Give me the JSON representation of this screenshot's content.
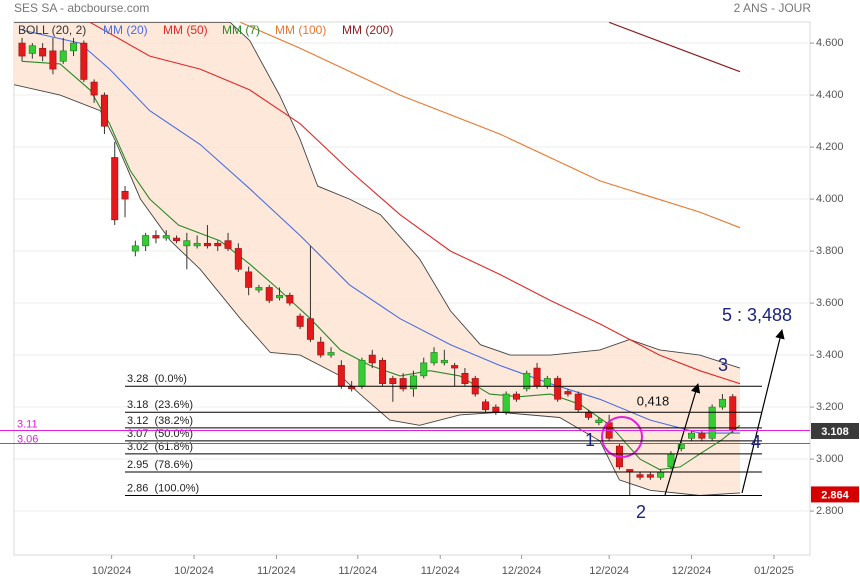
{
  "chart_data": {
    "type": "candlestick",
    "title": "SES SA - abcbourse.com",
    "period": "2 ANS - JOUR",
    "xlim": [
      -0.78,
      76.5
    ],
    "ylim": [
      2.631,
      4.681
    ],
    "xticks": [
      {
        "value": 8.7,
        "label": "10/2024"
      },
      {
        "value": 16.7,
        "label": "10/2024"
      },
      {
        "value": 24.7,
        "label": "11/2024"
      },
      {
        "value": 32.6,
        "label": "11/2024"
      },
      {
        "value": 40.6,
        "label": "11/2024"
      },
      {
        "value": 48.5,
        "label": "12/2024"
      },
      {
        "value": 57,
        "label": "12/2024"
      },
      {
        "value": 65,
        "label": "12/2024"
      },
      {
        "value": 73,
        "label": "01/2025"
      }
    ],
    "yticks": [
      {
        "value": 2.8,
        "label": "2.800"
      },
      {
        "value": 3.0,
        "label": "3.000"
      },
      {
        "value": 3.2,
        "label": "3.200"
      },
      {
        "value": 3.4,
        "label": "3.400"
      },
      {
        "value": 3.6,
        "label": "3.600"
      },
      {
        "value": 3.8,
        "label": "3.800"
      },
      {
        "value": 4.0,
        "label": "4.000"
      },
      {
        "value": 4.2,
        "label": "4.200"
      },
      {
        "value": 4.4,
        "label": "4.400"
      },
      {
        "value": 4.6,
        "label": "4.600"
      }
    ],
    "grid": true,
    "up_color": "#33cc33",
    "down_color": "#e3191c",
    "open": [
      4.6,
      4.56,
      4.58,
      4.57,
      4.53,
      4.57,
      4.6,
      4.45,
      4.4,
      4.16,
      4.03,
      3.8,
      3.82,
      3.86,
      3.85,
      3.85,
      3.82,
      3.82,
      3.83,
      3.83,
      3.84,
      3.81,
      3.72,
      3.65,
      3.66,
      3.62,
      3.63,
      3.55,
      3.54,
      3.45,
      3.4,
      3.36,
      3.28,
      3.28,
      3.4,
      3.38,
      3.31,
      3.31,
      3.27,
      3.32,
      3.37,
      3.37,
      3.36,
      3.33,
      3.31,
      3.22,
      3.2,
      3.18,
      3.25,
      3.27,
      3.35,
      3.28,
      3.31,
      3.26,
      3.25,
      3.18,
      3.14,
      3.14,
      3.05,
      2.96,
      2.94,
      2.94,
      2.93,
      2.97,
      3.04,
      3.08,
      3.1,
      3.08,
      3.2,
      3.24
    ],
    "high": [
      4.62,
      4.6,
      4.6,
      4.62,
      4.62,
      4.62,
      4.61,
      4.46,
      4.41,
      4.22,
      4.05,
      3.84,
      3.87,
      3.88,
      3.88,
      3.86,
      3.87,
      3.86,
      3.9,
      3.84,
      3.87,
      3.83,
      3.74,
      3.67,
      3.67,
      3.66,
      3.64,
      3.56,
      3.82,
      3.47,
      3.43,
      3.38,
      3.3,
      3.39,
      3.42,
      3.39,
      3.32,
      3.33,
      3.34,
      3.39,
      3.43,
      3.42,
      3.37,
      3.35,
      3.32,
      3.23,
      3.21,
      3.26,
      3.26,
      3.34,
      3.37,
      3.32,
      3.32,
      3.27,
      3.26,
      3.19,
      3.16,
      3.17,
      3.06,
      2.96,
      2.95,
      2.95,
      2.96,
      3.03,
      3.07,
      3.11,
      3.11,
      3.21,
      3.25,
      3.25
    ],
    "low": [
      4.53,
      4.54,
      4.53,
      4.48,
      4.52,
      4.55,
      4.45,
      4.37,
      4.25,
      3.9,
      3.93,
      3.78,
      3.8,
      3.83,
      3.84,
      3.83,
      3.73,
      3.81,
      3.81,
      3.8,
      3.8,
      3.72,
      3.63,
      3.64,
      3.6,
      3.61,
      3.59,
      3.5,
      3.45,
      3.39,
      3.39,
      3.27,
      3.26,
      3.27,
      3.35,
      3.28,
      3.22,
      3.26,
      3.24,
      3.31,
      3.36,
      3.36,
      3.28,
      3.28,
      3.24,
      3.18,
      3.17,
      3.17,
      3.22,
      3.26,
      3.27,
      3.27,
      3.22,
      3.24,
      3.18,
      3.15,
      3.13,
      3.07,
      2.96,
      2.86,
      2.92,
      2.92,
      2.92,
      2.96,
      3.03,
      3.07,
      3.07,
      3.07,
      3.19,
      3.1
    ],
    "close": [
      4.55,
      4.59,
      4.55,
      4.5,
      4.57,
      4.6,
      4.46,
      4.4,
      4.28,
      3.92,
      4.0,
      3.82,
      3.86,
      3.85,
      3.86,
      3.84,
      3.84,
      3.83,
      3.82,
      3.82,
      3.81,
      3.73,
      3.66,
      3.66,
      3.61,
      3.63,
      3.6,
      3.51,
      3.46,
      3.4,
      3.41,
      3.28,
      3.27,
      3.38,
      3.37,
      3.29,
      3.29,
      3.27,
      3.32,
      3.37,
      3.41,
      3.38,
      3.35,
      3.29,
      3.25,
      3.19,
      3.18,
      3.25,
      3.23,
      3.33,
      3.28,
      3.31,
      3.23,
      3.25,
      3.19,
      3.16,
      3.15,
      3.08,
      2.97,
      2.95,
      2.93,
      2.93,
      2.95,
      3.02,
      3.06,
      3.1,
      3.08,
      3.2,
      3.23,
      3.11
    ],
    "bollinger": {
      "name": "BOLL (20, 2)",
      "color": "#444444",
      "fill": "#fde4d4",
      "upper": {
        "x": [
          -0.78,
          20.2,
          22.1,
          25,
          27,
          28.7,
          31.8,
          34.8,
          38.6,
          41.6,
          44.5,
          47.4,
          51.3,
          56.1,
          59,
          61.9,
          65.8,
          69.7
        ],
        "values": [
          4.68,
          4.68,
          4.61,
          4.4,
          4.23,
          4.05,
          4.0,
          3.94,
          3.77,
          3.57,
          3.44,
          3.4,
          3.4,
          3.42,
          3.46,
          3.42,
          3.4,
          3.35
        ]
      },
      "lower": {
        "x": [
          -0.78,
          3.7,
          7.6,
          9,
          11.5,
          14.4,
          17.3,
          21.2,
          24.1,
          27,
          30.9,
          32.8,
          35.7,
          38.6,
          42.5,
          46.4,
          52.2,
          56.1,
          58,
          61,
          65.8,
          69.7
        ],
        "values": [
          4.44,
          4.4,
          4.34,
          4.23,
          4.0,
          3.84,
          3.73,
          3.54,
          3.41,
          3.4,
          3.32,
          3.25,
          3.15,
          3.13,
          3.17,
          3.18,
          3.16,
          3.07,
          2.92,
          2.88,
          2.86,
          2.87
        ]
      }
    },
    "series": [
      {
        "name": "MM (20)",
        "color": "#4a6ee0",
        "x": [
          0,
          5.6,
          8.5,
          12.4,
          17.3,
          22.1,
          27,
          31.8,
          36.7,
          41.6,
          46.4,
          51.3,
          56.1,
          61,
          65.8,
          69.7
        ],
        "values": [
          4.65,
          4.6,
          4.5,
          4.34,
          4.21,
          4.04,
          3.86,
          3.67,
          3.54,
          3.44,
          3.36,
          3.29,
          3.23,
          3.15,
          3.1,
          3.1
        ]
      },
      {
        "name": "MM (50)",
        "color": "#e02828",
        "x": [
          6.6,
          12.4,
          17.3,
          22.1,
          27,
          31.8,
          36.7,
          41.6,
          46.4,
          51.3,
          56.1,
          59,
          61.9,
          65.8,
          69.7
        ],
        "values": [
          4.68,
          4.55,
          4.5,
          4.42,
          4.29,
          4.11,
          3.94,
          3.8,
          3.71,
          3.61,
          3.52,
          3.46,
          3.4,
          3.34,
          3.29
        ]
      },
      {
        "name": "MM (7)",
        "color": "#2a8a2a",
        "x": [
          0,
          3.7,
          6.6,
          8.5,
          10.5,
          12.4,
          15.2,
          19.2,
          22.1,
          25,
          28,
          30.9,
          33.8,
          36.7,
          39.6,
          42.5,
          45.4,
          48.3,
          51.3,
          54.2,
          57.1,
          60,
          61.9,
          63.9,
          65.8,
          67.8,
          69.7
        ],
        "values": [
          4.53,
          4.52,
          4.42,
          4.29,
          4.11,
          4.0,
          3.9,
          3.84,
          3.75,
          3.65,
          3.54,
          3.42,
          3.36,
          3.32,
          3.34,
          3.32,
          3.25,
          3.24,
          3.25,
          3.21,
          3.13,
          3.0,
          2.96,
          2.97,
          3.02,
          3.07,
          3.13
        ]
      },
      {
        "name": "MM (100)",
        "color": "#e8772e",
        "x": [
          21.2,
          27,
          36.7,
          46.4,
          56.1,
          65.8,
          69.7
        ],
        "values": [
          4.68,
          4.58,
          4.4,
          4.25,
          4.07,
          3.95,
          3.89
        ]
      },
      {
        "name": "MM (200)",
        "color": "#8b1c1c",
        "x": [
          57,
          63,
          69.7
        ],
        "values": [
          4.68,
          4.59,
          4.49
        ]
      }
    ],
    "fib_levels": {
      "color": "#000000",
      "levels": [
        {
          "value": 3.28,
          "label": "3.28  (0.0%)"
        },
        {
          "value": 3.18,
          "label": "3.18  (23.6%)"
        },
        {
          "value": 3.12,
          "label": "3.12  (38.2%)"
        },
        {
          "value": 3.07,
          "label": "3.07  (50.0%)"
        },
        {
          "value": 3.02,
          "label": "3.02  (61.8%)"
        },
        {
          "value": 2.95,
          "label": "2.95  (78.6%)"
        },
        {
          "value": 2.86,
          "label": "2.86  (100.0%)"
        }
      ]
    },
    "magenta_levels": {
      "color": "#e020e0",
      "values": [
        3.11,
        3.06
      ]
    },
    "price_tags": [
      {
        "value": 3.108,
        "color": "#3a3a3a"
      },
      {
        "value": 2.864,
        "color": "#d40000"
      }
    ],
    "annotations": [
      "0,418",
      "1",
      "2",
      "3",
      "4",
      "5 : 3,488"
    ]
  }
}
